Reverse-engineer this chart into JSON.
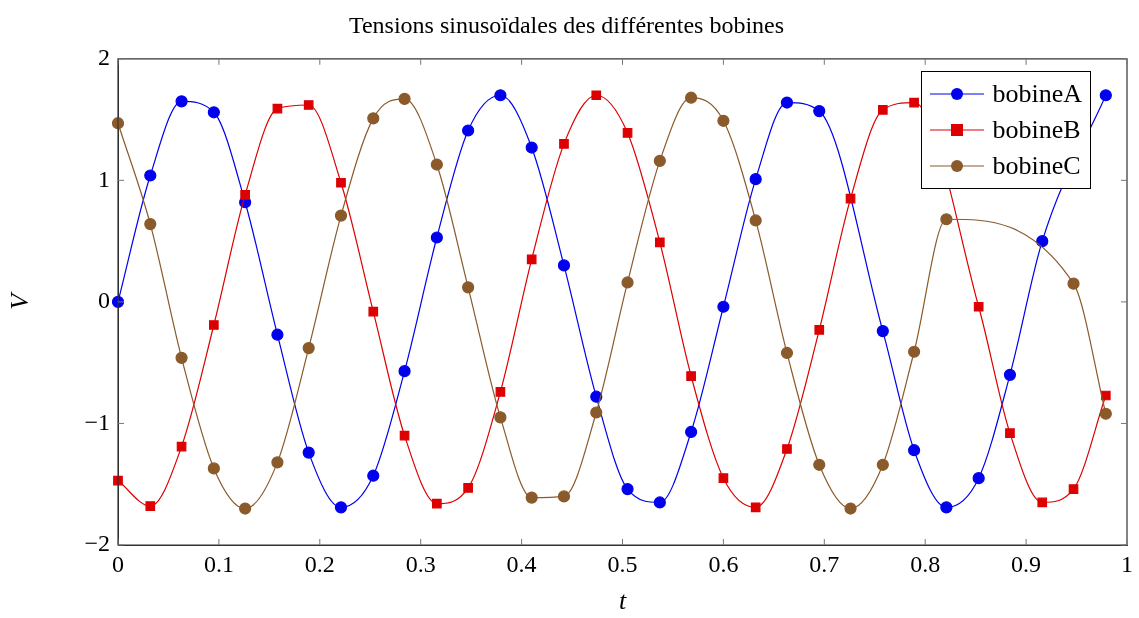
{
  "chart_data": {
    "type": "line",
    "title": "Tensions sinusoïdales des différentes bobines",
    "xlabel": "t",
    "ylabel": "V",
    "x": [
      0,
      0.032,
      0.063,
      0.095,
      0.126,
      0.158,
      0.189,
      0.221,
      0.253,
      0.284,
      0.316,
      0.347,
      0.379,
      0.41,
      0.442,
      0.474,
      0.505,
      0.537,
      0.568,
      0.6,
      0.632,
      0.663,
      0.695,
      0.726,
      0.758,
      0.789,
      0.821,
      0.853,
      0.884,
      0.916,
      0.947,
      0.979
    ],
    "series": [
      {
        "name": "bobineA",
        "color": "#0000ee",
        "marker": "circle",
        "values": [
          0,
          1.04,
          1.65,
          1.56,
          0.82,
          -0.27,
          -1.24,
          -1.69,
          -1.43,
          -0.57,
          0.53,
          1.41,
          1.7,
          1.27,
          0.3,
          -0.78,
          -1.54,
          -1.65,
          -1.07,
          -0.04,
          1.01,
          1.64,
          1.57,
          null,
          -0.24,
          -1.22,
          -1.69,
          -1.45,
          -0.6,
          0.5,
          null,
          1.7
        ]
      },
      {
        "name": "bobineB",
        "color": "#dd0000",
        "marker": "square",
        "values": [
          -1.47,
          -1.68,
          -1.19,
          -0.19,
          0.88,
          1.59,
          1.62,
          0.98,
          -0.08,
          -1.1,
          -1.66,
          -1.53,
          -0.74,
          0.35,
          1.3,
          1.7,
          1.39,
          0.49,
          -0.61,
          -1.45,
          -1.69,
          -1.21,
          -0.23,
          0.85,
          1.58,
          1.64,
          null,
          -0.04,
          -1.08,
          -1.65,
          -1.54,
          -0.77
        ]
      },
      {
        "name": "bobineC",
        "color": "#8b5a2b",
        "marker": "circle",
        "values": [
          1.47,
          0.64,
          -0.46,
          -1.37,
          -1.7,
          -1.32,
          -0.38,
          0.71,
          1.51,
          1.67,
          1.13,
          0.12,
          -0.95,
          -1.61,
          -1.6,
          -0.91,
          0.16,
          1.16,
          1.68,
          1.49,
          0.67,
          -0.42,
          -1.34,
          -1.7,
          -1.34,
          -0.41,
          0.68,
          null,
          null,
          null,
          0.15,
          -0.92
        ]
      }
    ],
    "xlim": [
      0,
      1
    ],
    "xticks": [
      0,
      0.1,
      0.2,
      0.3,
      0.4,
      0.5,
      0.6,
      0.7,
      0.8,
      0.9,
      1
    ],
    "ylim": [
      -2,
      2
    ],
    "yticks": [
      {
        "value": -2,
        "label": "−2"
      },
      {
        "value": -1,
        "label": "−1"
      },
      0,
      1,
      2
    ],
    "grid": false,
    "legend": "top right",
    "line_style": "solid"
  }
}
